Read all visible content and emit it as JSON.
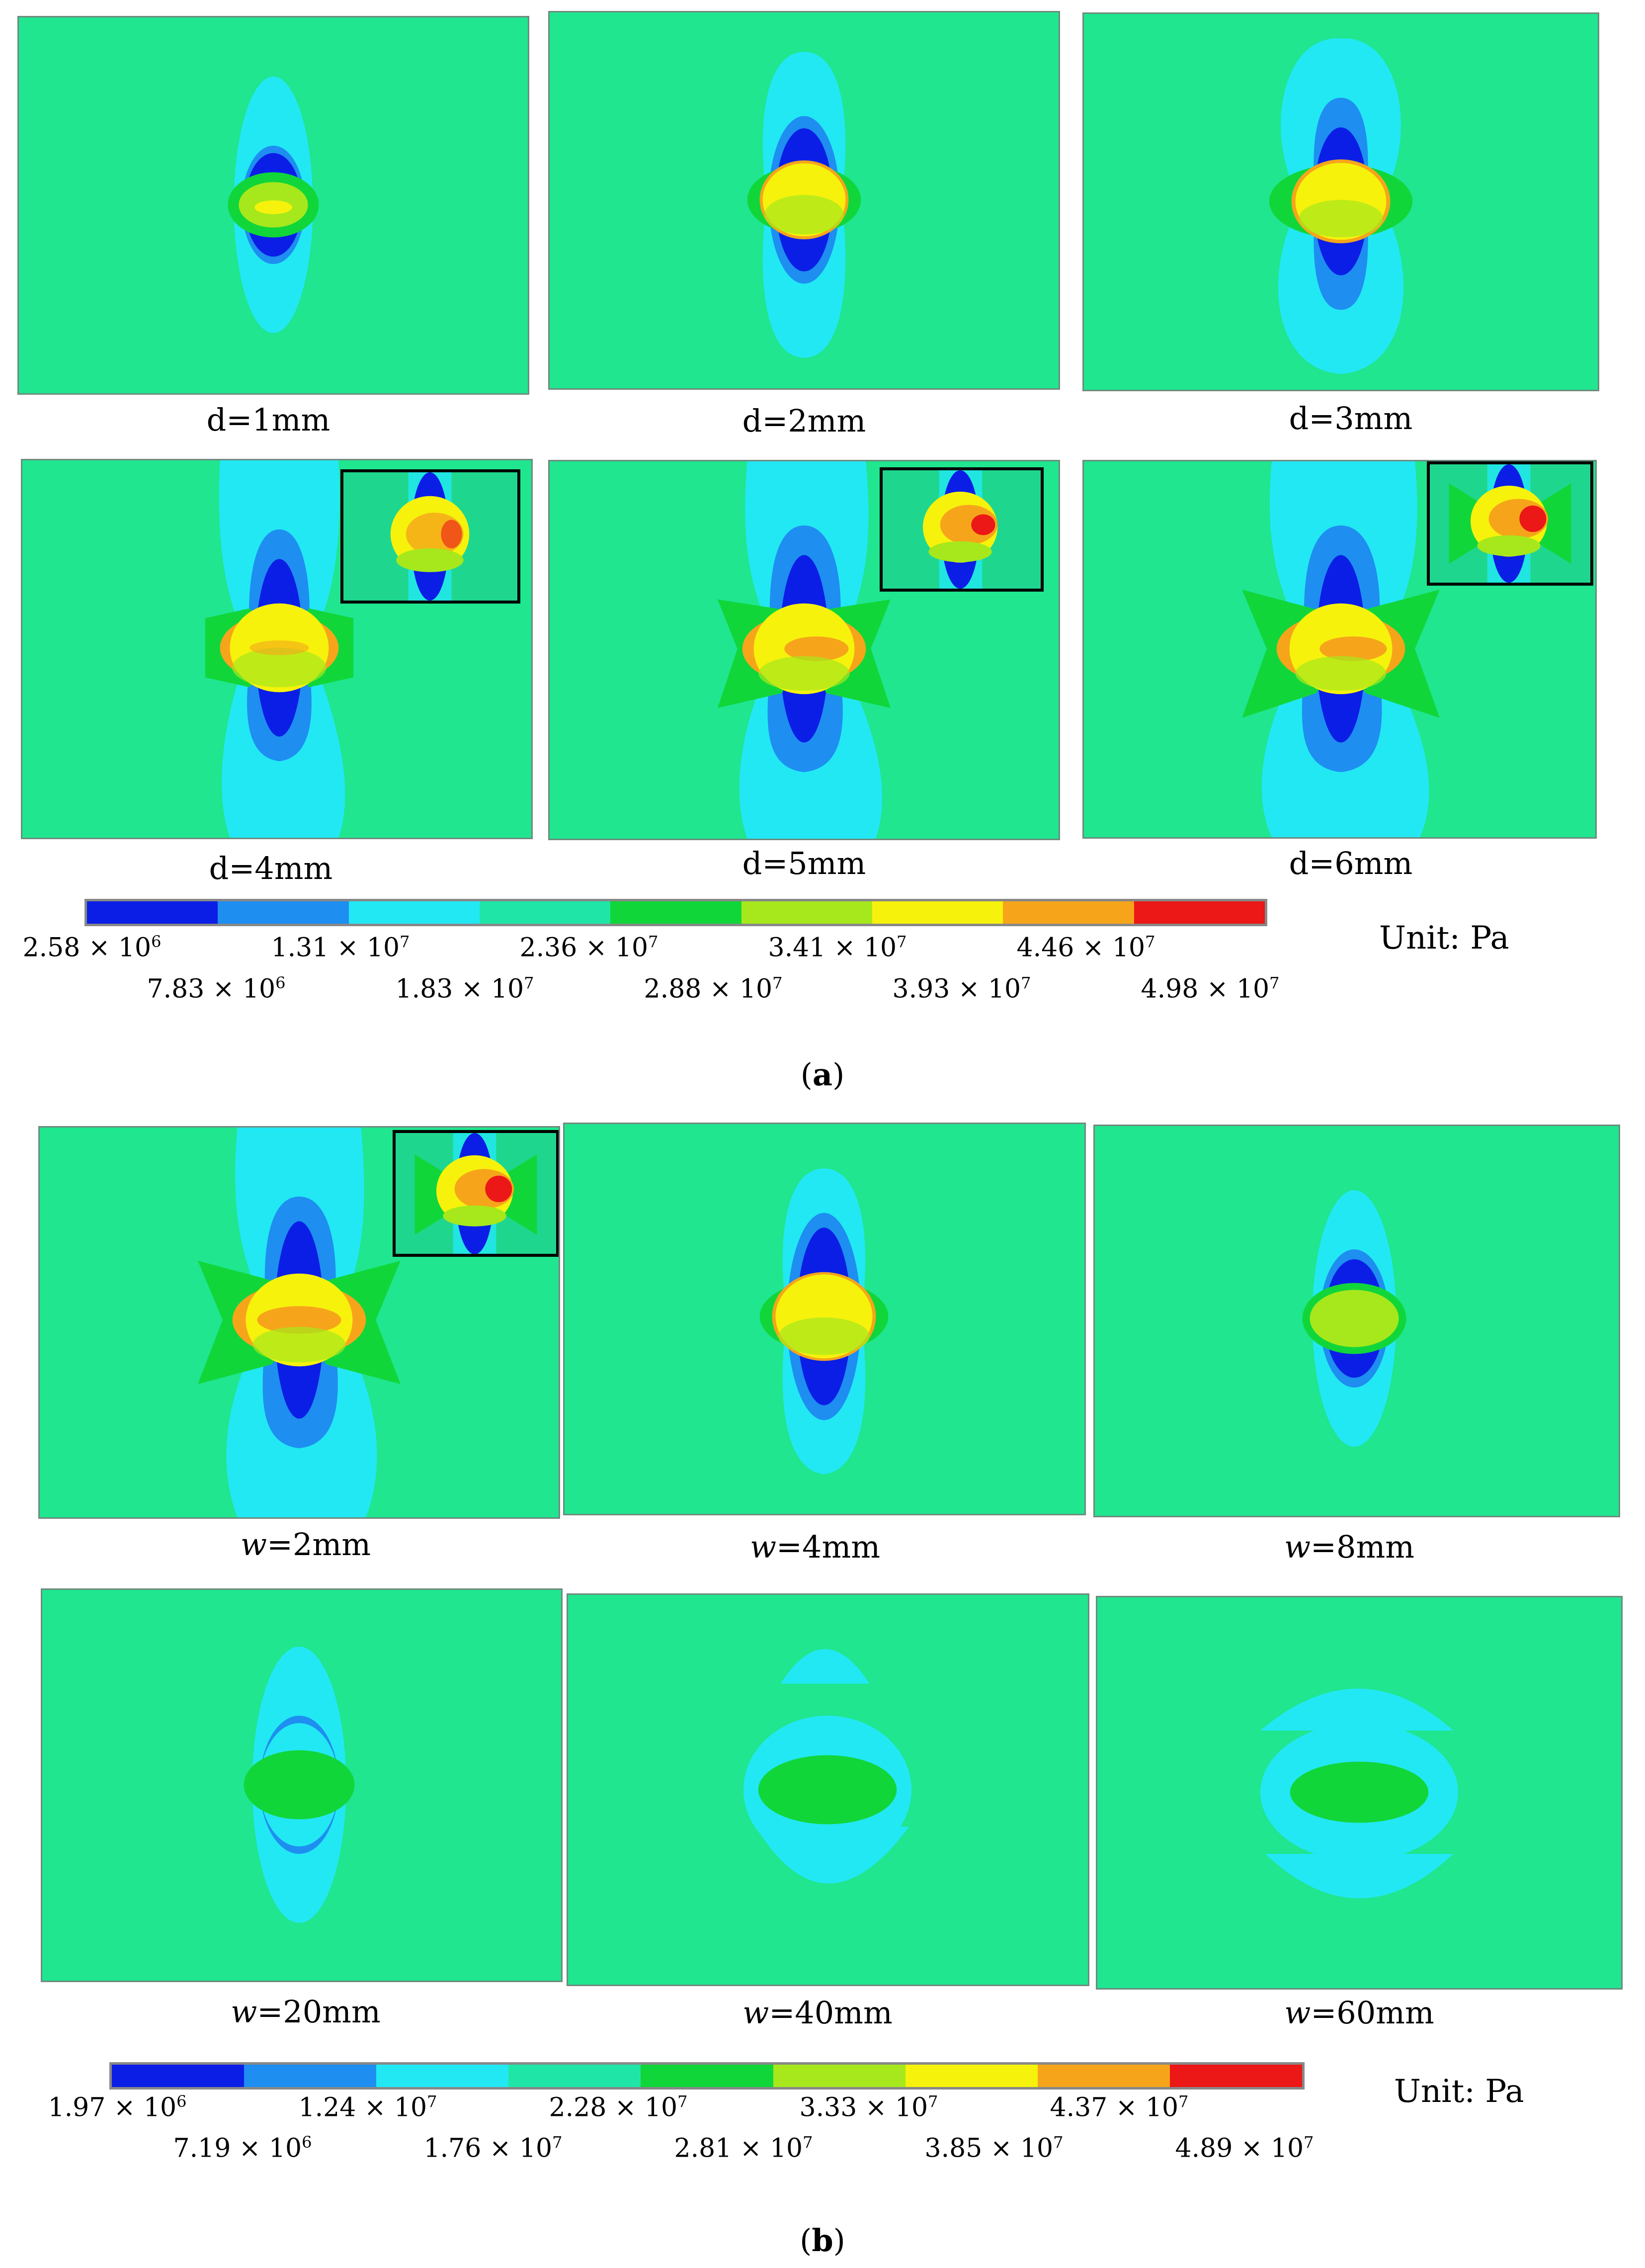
{
  "part_a": {
    "caption": "a",
    "panels": [
      {
        "label": "d=1mm"
      },
      {
        "label": "d=2mm"
      },
      {
        "label": "d=3mm"
      },
      {
        "label": "d=4mm"
      },
      {
        "label": "d=5mm"
      },
      {
        "label": "d=6mm"
      }
    ],
    "colorbar": {
      "colors": [
        "#0b1ee6",
        "#1e8ef0",
        "#22e8f4",
        "#1fe6a6",
        "#11d63a",
        "#a6e81c",
        "#f6f20c",
        "#f6a51a",
        "#ec1717"
      ],
      "ticks_top": [
        "2.58 × 10",
        "1.31 × 10",
        "2.36 × 10",
        "3.41 × 10",
        "4.46 × 10"
      ],
      "ticks_top_exp": [
        "6",
        "7",
        "7",
        "7",
        "7"
      ],
      "ticks_bottom": [
        "7.83 × 10",
        "1.83 × 10",
        "2.88 × 10",
        "3.93 × 10",
        "4.98 × 10"
      ],
      "ticks_bottom_exp": [
        "6",
        "7",
        "7",
        "7",
        "7"
      ],
      "unit": "Unit:  Pa"
    }
  },
  "part_b": {
    "caption": "b",
    "panels": [
      {
        "label_var": "w",
        "label_rest": "=2mm"
      },
      {
        "label_var": "w",
        "label_rest": "=4mm"
      },
      {
        "label_var": "w",
        "label_rest": "=8mm"
      },
      {
        "label_var": "w",
        "label_rest": "=20mm"
      },
      {
        "label_var": "w",
        "label_rest": "=40mm"
      },
      {
        "label_var": "w",
        "label_rest": "=60mm"
      }
    ],
    "colorbar": {
      "colors": [
        "#0b1ee6",
        "#1e8ef0",
        "#22e8f4",
        "#1fe6a6",
        "#11d63a",
        "#a6e81c",
        "#f6f20c",
        "#f6a51a",
        "#ec1717"
      ],
      "ticks_top": [
        "1.97 × 10",
        "1.24 × 10",
        "2.28 × 10",
        "3.33 × 10",
        "4.37 × 10"
      ],
      "ticks_top_exp": [
        "6",
        "7",
        "7",
        "7",
        "7"
      ],
      "ticks_bottom": [
        "7.19 × 10",
        "1.76 × 10",
        "2.81 × 10",
        "3.85 × 10",
        "4.89 × 10"
      ],
      "ticks_bottom_exp": [
        "6",
        "7",
        "7",
        "7",
        "7"
      ],
      "unit": "Unit:  Pa"
    }
  }
}
